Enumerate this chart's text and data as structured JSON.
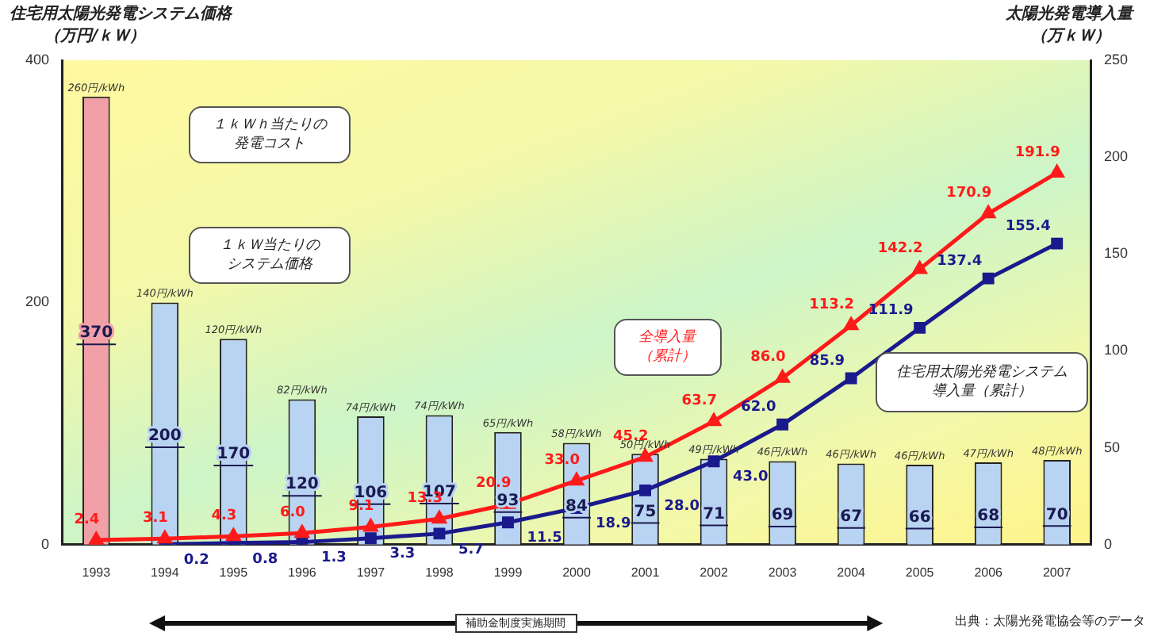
{
  "chart_data": {
    "type": "bar",
    "ylabel": "住宅用太陽光発電システム価格（万円/ｋＷ）",
    "y2label": "太陽光発電導入量（万ｋＷ）",
    "categories": [
      "1993",
      "1994",
      "1995",
      "1996",
      "1997",
      "1998",
      "1999",
      "2000",
      "2001",
      "2002",
      "2003",
      "2004",
      "2005",
      "2006",
      "2007"
    ],
    "values": [
      370,
      200,
      170,
      120,
      106,
      107,
      93,
      84,
      75,
      71,
      69,
      67,
      66,
      68,
      70
    ],
    "colors": [
      "#f2a0a8",
      "#b9d3f2",
      "#b9d3f2",
      "#b9d3f2",
      "#b9d3f2",
      "#b9d3f2",
      "#b9d3f2",
      "#b9d3f2",
      "#b9d3f2",
      "#b9d3f2",
      "#b9d3f2",
      "#b9d3f2",
      "#b9d3f2",
      "#b9d3f2",
      "#b9d3f2"
    ],
    "data_labels": true,
    "series": [
      {
        "name": "全導入量（累計）",
        "type": "line",
        "axis": "y2",
        "color": "#ff1a1a",
        "marker": "triangle",
        "values": [
          2.4,
          3.1,
          4.3,
          6.0,
          9.1,
          13.3,
          20.9,
          33.0,
          45.2,
          63.7,
          86.0,
          113.2,
          142.2,
          170.9,
          191.9
        ],
        "value_labels": [
          "2.4",
          "3.1",
          "4.3",
          "6.0",
          "9.1",
          "13.3",
          "20.9",
          "33.0",
          "45.2",
          "63.7",
          "86.0",
          "113.2",
          "142.2",
          "170.9",
          "191.9"
        ]
      },
      {
        "name": "住宅用太陽光発電システム導入量（累計）",
        "type": "line",
        "axis": "y2",
        "color": "#1a1a8c",
        "marker": "square",
        "values": [
          null,
          0.2,
          0.8,
          1.3,
          3.3,
          5.7,
          11.5,
          18.9,
          28.0,
          43.0,
          62.0,
          85.9,
          111.9,
          137.4,
          155.4
        ],
        "value_labels": [
          null,
          "0.2",
          "0.8",
          "1.3",
          "3.3",
          "5.7",
          "11.5",
          "18.9",
          "28.0",
          "43.0",
          "62.0",
          "85.9",
          "111.9",
          "137.4",
          "155.4"
        ]
      }
    ],
    "ylim": [
      0,
      400
    ],
    "yticks": [
      0,
      200,
      400
    ],
    "y2lim": [
      0,
      250
    ],
    "y2ticks": [
      0,
      50,
      100,
      150,
      200,
      250
    ],
    "grid": false,
    "legend": false,
    "annotations": [
      "１ｋＷｈ当たりの発電コスト",
      "１ｋＷ当たりのシステム価格",
      "補助金制度実施期間",
      "出典：太陽光発電協会等のデータ",
      {
        "text": "260円/kWh",
        "x": "1993",
        "y": 370
      },
      {
        "text": "140円/kWh",
        "x": "1994",
        "y": 200
      },
      {
        "text": "120円/kWh",
        "x": "1995",
        "y": 170
      },
      {
        "text": "82円/kWh",
        "x": "1996",
        "y": 120
      },
      {
        "text": "74円/kWh",
        "x": "1997",
        "y": 106
      },
      {
        "text": "74円/kWh",
        "x": "1998",
        "y": 107
      },
      {
        "text": "65円/kWh",
        "x": "1999",
        "y": 93
      },
      {
        "text": "58円/kWh",
        "x": "2000",
        "y": 84
      },
      {
        "text": "50円/kWh",
        "x": "2001",
        "y": 75
      },
      {
        "text": "49円/kWh",
        "x": "2002",
        "y": 71
      },
      {
        "text": "46円/kWh",
        "x": "2003",
        "y": 69
      },
      {
        "text": "46円/kWh",
        "x": "2004",
        "y": 67
      },
      {
        "text": "46円/kWh",
        "x": "2005",
        "y": 66
      },
      {
        "text": "47円/kWh",
        "x": "2006",
        "y": 68
      },
      {
        "text": "48円/kWh",
        "x": "2007",
        "y": 70
      }
    ]
  }
}
